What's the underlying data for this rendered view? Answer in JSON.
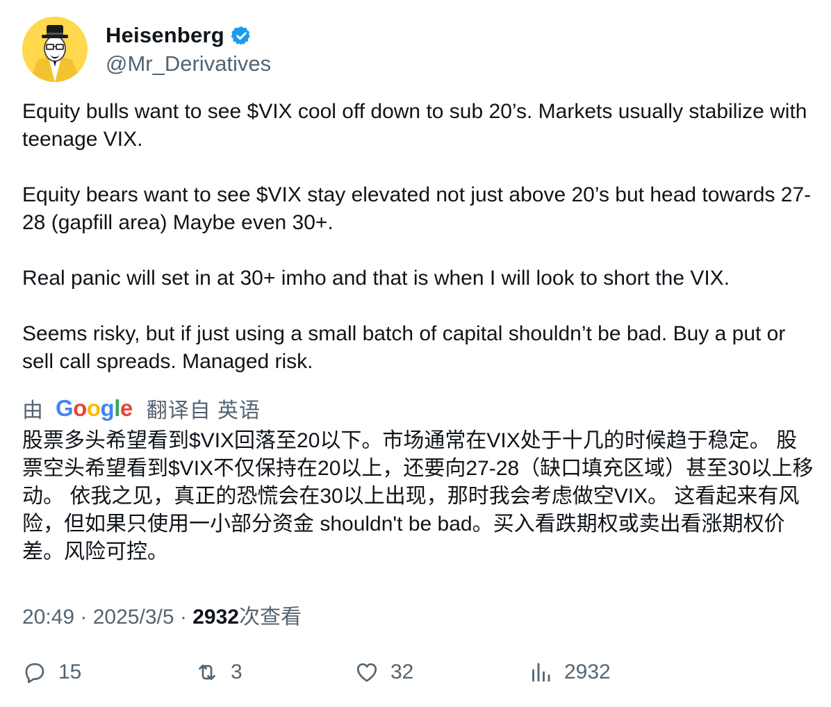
{
  "author": {
    "display_name": "Heisenberg",
    "handle": "@Mr_Derivatives",
    "verified": true,
    "verified_color": "#1d9bf0",
    "avatar_bg": "#ffd84d"
  },
  "tweet": {
    "paragraphs": [
      "Equity bulls want to see $VIX cool off down to sub 20’s. Markets usually stabilize with teenage VIX.",
      "Equity bears want to see $VIX stay elevated not just above 20’s but head towards 27-28 (gapfill area) Maybe even 30+.",
      "Real panic will set in at 30+ imho and that is when I will look to short the VIX.",
      "Seems risky, but if just using a small batch of capital shouldn’t be bad. Buy a put or sell call spreads. Managed risk."
    ]
  },
  "translation": {
    "by_label": "由",
    "logo_letters": [
      "G",
      "o",
      "o",
      "g",
      "l",
      "e"
    ],
    "label": "翻译自 英语",
    "text": "股票多头希望看到$VIX回落至20以下。市场通常在VIX处于十几的时候趋于稳定。 股票空头希望看到$VIX不仅保持在20以上，还要向27-28（缺口填充区域）甚至30以上移动。 依我之见，真正的恐慌会在30以上出现，那时我会考虑做空VIX。 这看起来有风险，但如果只使用一小部分资金 shouldn't be bad。买入看跌期权或卖出看涨期权价差。风险可控。"
  },
  "meta": {
    "time": "20:49",
    "separator": " · ",
    "date": "2025/3/5",
    "views_count": "2932",
    "views_label": "次查看"
  },
  "actions": {
    "replies": "15",
    "reposts": "3",
    "likes": "32",
    "views": "2932",
    "icon_color": "#536471"
  }
}
